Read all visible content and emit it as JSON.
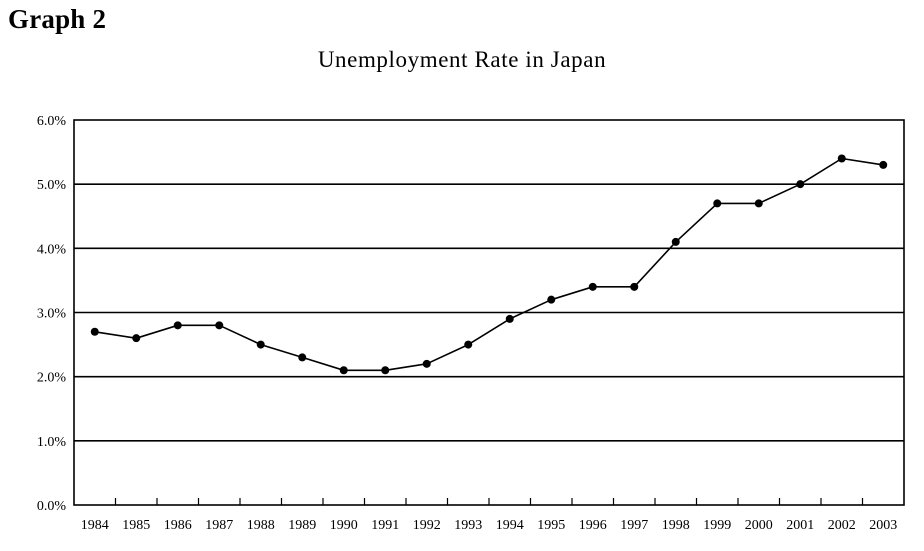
{
  "header": {
    "label": "Graph 2"
  },
  "chart_data": {
    "type": "line",
    "title": "Unemployment Rate in Japan",
    "xlabel": "",
    "ylabel": "",
    "categories": [
      "1984",
      "1985",
      "1986",
      "1987",
      "1988",
      "1989",
      "1990",
      "1991",
      "1992",
      "1993",
      "1994",
      "1995",
      "1996",
      "1997",
      "1998",
      "1999",
      "2000",
      "2001",
      "2002",
      "2003"
    ],
    "series": [
      {
        "values": [
          2.7,
          2.6,
          2.8,
          2.8,
          2.5,
          2.3,
          2.1,
          2.1,
          2.2,
          2.5,
          2.9,
          3.2,
          3.4,
          3.4,
          4.1,
          4.7,
          4.7,
          5.0,
          5.4,
          5.3
        ]
      }
    ],
    "ylim": [
      0,
      6
    ],
    "yticks": [
      0,
      1,
      2,
      3,
      4,
      5,
      6
    ],
    "ytick_labels": [
      "0.0%",
      "1.0%",
      "2.0%",
      "3.0%",
      "4.0%",
      "5.0%",
      "6.0%"
    ],
    "grid": "horizontal",
    "legend": "none",
    "colors": {
      "line": "#000000",
      "marker": "#000000",
      "grid": "#000000"
    }
  }
}
